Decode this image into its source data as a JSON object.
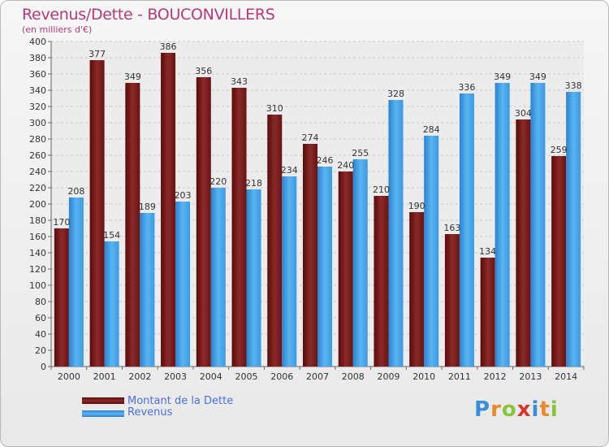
{
  "title": "Revenus/Dette - BOUCONVILLERS",
  "subtitle": "(en milliers d'€)",
  "legend": [
    {
      "label": "Montant de la Dette",
      "color": "#7a1a1a"
    },
    {
      "label": "Revenus",
      "color": "#3d9ee6"
    }
  ],
  "logo": {
    "letters": [
      "P",
      "r",
      "o",
      "x",
      "i",
      "t",
      "i"
    ],
    "colors": [
      "#3a8ed8",
      "#e88a2a",
      "#8ac43a",
      "#e0322a",
      "#3a8ed8",
      "#e88a2a",
      "#8ac43a"
    ]
  },
  "chart_data": {
    "type": "bar",
    "categories": [
      "2000",
      "2001",
      "2002",
      "2003",
      "2004",
      "2005",
      "2006",
      "2007",
      "2008",
      "2009",
      "2010",
      "2011",
      "2012",
      "2013",
      "2014"
    ],
    "series": [
      {
        "name": "Montant de la Dette",
        "values": [
          170,
          377,
          349,
          386,
          356,
          343,
          310,
          274,
          240,
          210,
          190,
          163,
          134,
          304,
          259
        ]
      },
      {
        "name": "Revenus",
        "values": [
          208,
          154,
          189,
          203,
          220,
          218,
          234,
          246,
          255,
          328,
          284,
          336,
          349,
          349,
          338
        ]
      }
    ],
    "ylim": [
      0,
      400
    ],
    "ytick_step": 20,
    "grid": true
  }
}
